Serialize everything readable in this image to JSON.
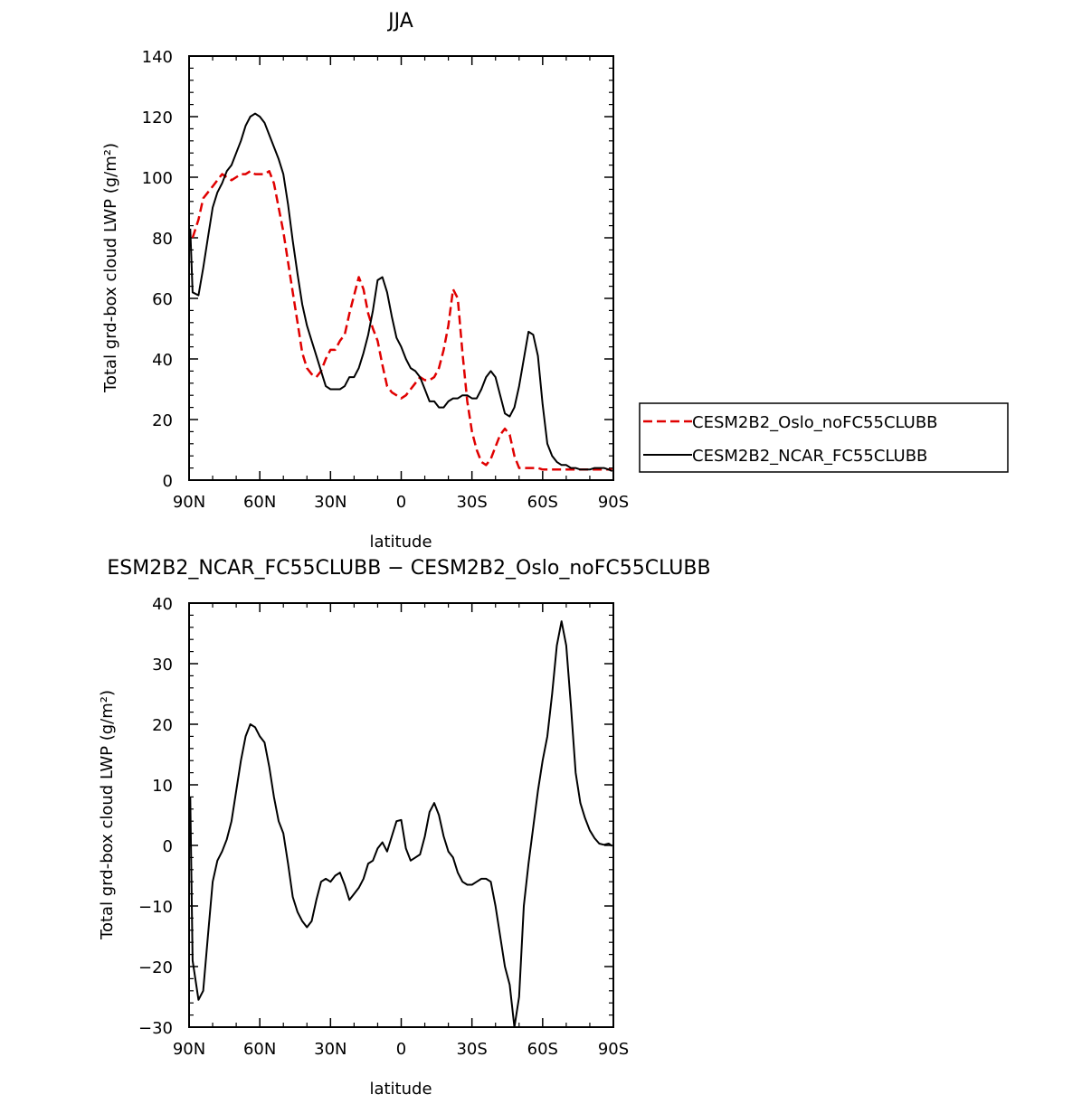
{
  "chart_data": [
    {
      "type": "line",
      "title": "JJA",
      "xlabel": "latitude",
      "ylabel": "Total grd-box cloud LWP (g/m²)",
      "xlim": [
        90,
        -90
      ],
      "ylim": [
        0,
        140
      ],
      "xticks": [
        90,
        60,
        30,
        0,
        -30,
        -60,
        -90
      ],
      "xtick_labels": [
        "90N",
        "60N",
        "30N",
        "0",
        "30S",
        "60S",
        "90S"
      ],
      "yticks": [
        0,
        20,
        40,
        60,
        80,
        100,
        120,
        140
      ],
      "ytick_labels": [
        "0",
        "20",
        "40",
        "60",
        "80",
        "100",
        "120",
        "140"
      ],
      "legend_position": "right",
      "series": [
        {
          "name": "CESM2B2_Oslo_noFC55CLUBB",
          "color": "#e00000",
          "dash": "dashed",
          "x": [
            88.5,
            86,
            84,
            82,
            80,
            78,
            76,
            74,
            72,
            70,
            68,
            66,
            64,
            62,
            60,
            58,
            56,
            54,
            52,
            50,
            48,
            46,
            44,
            42,
            40,
            38,
            36,
            34,
            32,
            30,
            28,
            26,
            24,
            22,
            20,
            18,
            16,
            14,
            12,
            10,
            8,
            6,
            4,
            2,
            0,
            -2,
            -4,
            -6,
            -8,
            -10,
            -12,
            -14,
            -16,
            -18,
            -20,
            -22,
            -24,
            -26,
            -28,
            -30,
            -32,
            -34,
            -36,
            -38,
            -40,
            -42,
            -44,
            -46,
            -48,
            -50,
            -52,
            -54,
            -56,
            -58,
            -60,
            -62,
            -64,
            -66,
            -68,
            -70,
            -72,
            -74,
            -76,
            -78,
            -80,
            -82,
            -84,
            -86,
            -88,
            -89.5
          ],
          "y": [
            80,
            86,
            93,
            95,
            97,
            99,
            101,
            100,
            99,
            100,
            101,
            101,
            102,
            101,
            101,
            101,
            102,
            98,
            90,
            82,
            72,
            62,
            52,
            42,
            37,
            35,
            34,
            36,
            40,
            43,
            43,
            46,
            48,
            55,
            61,
            67,
            63,
            55,
            50,
            46,
            38,
            31,
            29,
            28,
            27,
            28,
            30,
            32,
            34,
            33,
            33,
            34,
            37,
            43,
            51,
            63,
            60,
            42,
            26,
            16,
            10,
            6,
            5,
            7,
            11,
            15,
            17,
            15,
            8,
            4,
            4,
            4,
            4,
            4,
            3.5,
            3.5,
            3.5,
            3.5,
            3.5,
            3.5,
            3.5,
            3.5,
            3.5,
            3.5,
            3.5,
            3.5,
            3.5,
            3.5,
            3.5,
            3.5
          ]
        },
        {
          "name": "CESM2B2_NCAR_FC55CLUBB",
          "color": "#000000",
          "dash": "solid",
          "x": [
            89.5,
            88.5,
            86,
            84,
            82,
            80,
            78,
            76,
            74,
            72,
            70,
            68,
            66,
            64,
            62,
            60,
            58,
            56,
            54,
            52,
            50,
            48,
            46,
            44,
            42,
            40,
            38,
            36,
            34,
            32,
            30,
            28,
            26,
            24,
            22,
            20,
            18,
            16,
            14,
            12,
            10,
            8,
            6,
            4,
            2,
            0,
            -2,
            -4,
            -6,
            -8,
            -10,
            -12,
            -14,
            -16,
            -18,
            -20,
            -22,
            -24,
            -26,
            -28,
            -30,
            -32,
            -34,
            -36,
            -38,
            -40,
            -42,
            -44,
            -46,
            -48,
            -50,
            -52,
            -54,
            -56,
            -58,
            -60,
            -62,
            -64,
            -66,
            -68,
            -70,
            -72,
            -74,
            -76,
            -78,
            -80,
            -82,
            -84,
            -86,
            -88,
            -89.5
          ],
          "y": [
            83,
            62,
            61,
            70,
            80,
            90,
            95,
            98,
            102,
            104,
            108,
            112,
            117,
            120,
            121,
            120,
            118,
            114,
            110,
            106,
            101,
            91,
            79,
            68,
            58,
            51,
            46,
            41,
            36,
            31,
            30,
            30,
            30,
            31,
            34,
            34,
            37,
            42,
            48,
            56,
            66,
            67,
            62,
            54,
            47,
            44,
            40,
            37,
            36,
            34,
            30,
            26,
            26,
            24,
            24,
            26,
            27,
            27,
            28,
            28,
            27,
            27,
            30,
            34,
            36,
            34,
            28,
            22,
            21,
            24,
            31,
            40,
            49,
            48,
            41,
            25,
            12,
            8,
            6,
            5,
            5,
            4,
            4,
            3.5,
            3.5,
            3.5,
            4,
            4,
            4,
            3.5,
            3
          ]
        }
      ]
    },
    {
      "type": "line",
      "title": "ESM2B2_NCAR_FC55CLUBB − CESM2B2_Oslo_noFC55CLUBB",
      "xlabel": "latitude",
      "ylabel": "Total grd-box cloud LWP (g/m²)",
      "xlim": [
        90,
        -90
      ],
      "ylim": [
        -30,
        40
      ],
      "xticks": [
        90,
        60,
        30,
        0,
        -30,
        -60,
        -90
      ],
      "xtick_labels": [
        "90N",
        "60N",
        "30N",
        "0",
        "30S",
        "60S",
        "90S"
      ],
      "yticks": [
        -30,
        -20,
        -10,
        0,
        10,
        20,
        30,
        40
      ],
      "ytick_labels": [
        "−30",
        "−20",
        "−10",
        "0",
        "10",
        "20",
        "30",
        "40"
      ],
      "series": [
        {
          "name": "",
          "color": "#000000",
          "dash": "solid",
          "x": [
            89.5,
            88.5,
            86,
            84,
            82,
            80,
            78,
            76,
            74,
            72,
            70,
            68,
            66,
            64,
            62,
            60,
            58,
            56,
            54,
            52,
            50,
            48,
            46,
            44,
            42,
            40,
            38,
            36,
            34,
            32,
            30,
            28,
            26,
            24,
            22,
            20,
            18,
            16,
            14,
            12,
            10,
            8,
            6,
            4,
            2,
            0,
            -2,
            -4,
            -6,
            -8,
            -10,
            -12,
            -14,
            -16,
            -18,
            -20,
            -22,
            -24,
            -26,
            -28,
            -30,
            -32,
            -34,
            -36,
            -38,
            -40,
            -42,
            -44,
            -46,
            -48,
            -50,
            -52,
            -54,
            -56,
            -58,
            -60,
            -62,
            -64,
            -66,
            -68,
            -70,
            -72,
            -74,
            -76,
            -78,
            -80,
            -82,
            -84,
            -86,
            -88,
            -89.5
          ],
          "y": [
            8,
            -19,
            -25.5,
            -24,
            -15,
            -6,
            -2.5,
            -1,
            1,
            4,
            9,
            14,
            18,
            20,
            19.5,
            18,
            17,
            13,
            8,
            4,
            2,
            -3,
            -8.5,
            -11,
            -12.5,
            -13.5,
            -12.5,
            -9,
            -6,
            -5.5,
            -6,
            -5,
            -4.5,
            -6.5,
            -9,
            -8,
            -7,
            -5.5,
            -3,
            -2.5,
            -0.5,
            0.5,
            -1,
            1.5,
            4,
            4.2,
            -0.5,
            -2.5,
            -2,
            -1.5,
            1.5,
            5.5,
            7,
            5,
            1.5,
            -1,
            -2,
            -4.5,
            -6,
            -6.5,
            -6.5,
            -6,
            -5.5,
            -5.5,
            -6,
            -10,
            -15,
            -20,
            -23,
            -30,
            -25,
            -10,
            -3,
            3,
            9,
            14,
            18,
            25,
            33,
            37,
            33,
            23,
            12,
            7,
            4.5,
            2.5,
            1.2,
            0.3,
            0.1,
            0.3,
            -0.1
          ]
        }
      ]
    }
  ]
}
